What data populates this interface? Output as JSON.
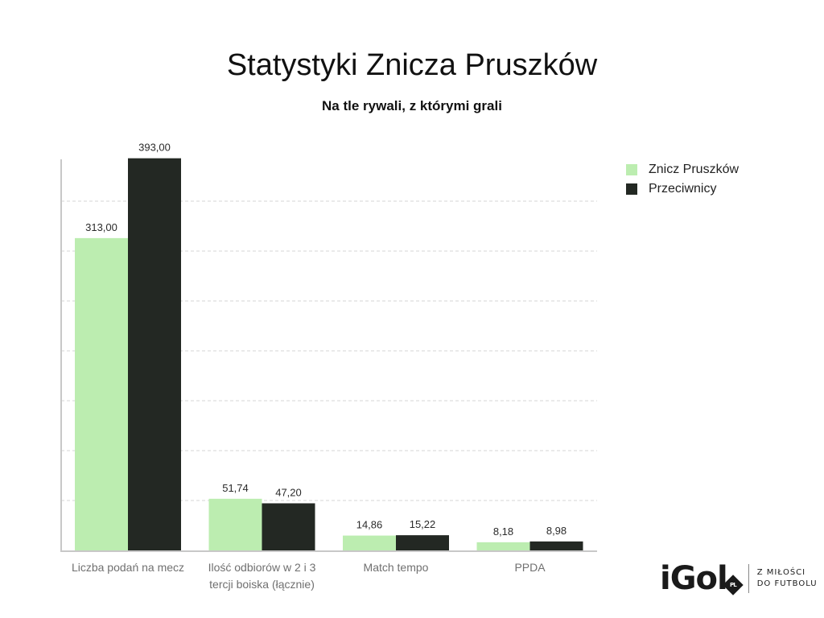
{
  "title": "Statystyki Znicza Pruszków",
  "subtitle": "Na tle rywali, z którymi grali",
  "chart_data": {
    "type": "bar",
    "title": "Statystyki Znicza Pruszków",
    "subtitle": "Na tle rywali, z którymi grali",
    "categories": [
      [
        "Liczba podań na mecz"
      ],
      [
        "Ilość odbiorów w 2 i 3",
        "tercji boiska (łącznie)"
      ],
      [
        "Match tempo"
      ],
      [
        "PPDA"
      ]
    ],
    "series": [
      {
        "name": "Znicz Pruszków",
        "color": "#bcedb0",
        "values": [
          313.0,
          51.74,
          14.86,
          8.18
        ],
        "labels": [
          "313,00",
          "51,74",
          "14,86",
          "8,18"
        ]
      },
      {
        "name": "Przeciwnicy",
        "color": "#232823",
        "values": [
          393.0,
          47.2,
          15.22,
          8.98
        ],
        "labels": [
          "393,00",
          "47,20",
          "15,22",
          "8,98"
        ]
      }
    ],
    "ylim": [
      0,
      400
    ],
    "grid": true,
    "legend_position": "top-right"
  },
  "logo": {
    "word": "iGol",
    "badge": "PL",
    "tagline_1": "Z MIŁOŚCI",
    "tagline_2": "DO FUTBOLU"
  }
}
